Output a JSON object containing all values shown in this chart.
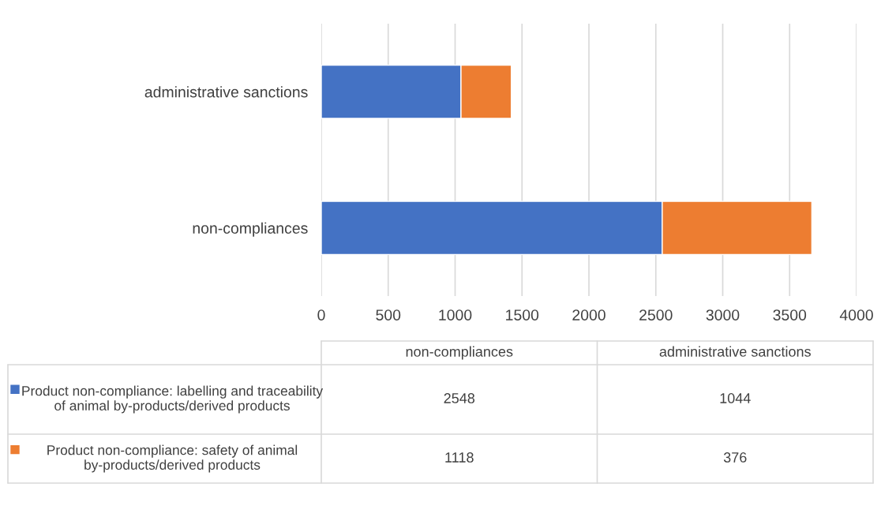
{
  "chart_data": {
    "type": "bar",
    "orientation": "horizontal",
    "stacked": true,
    "categories": [
      "administrative sanctions",
      "non-compliances"
    ],
    "series": [
      {
        "name": "Product non-compliance: labelling and traceability of animal by-products/derived products",
        "color": "#4472c4",
        "values": [
          1044,
          2548
        ]
      },
      {
        "name": "Product non-compliance: safety of animal by-products/derived products",
        "color": "#ed7d31",
        "values": [
          376,
          1118
        ]
      }
    ],
    "xlim": [
      0,
      4000
    ],
    "xticks": [
      0,
      500,
      1000,
      1500,
      2000,
      2500,
      3000,
      3500,
      4000
    ],
    "grid": "x",
    "legend": "bottom",
    "annotations": [
      "2548",
      "1044",
      "1118",
      "376"
    ]
  }
}
